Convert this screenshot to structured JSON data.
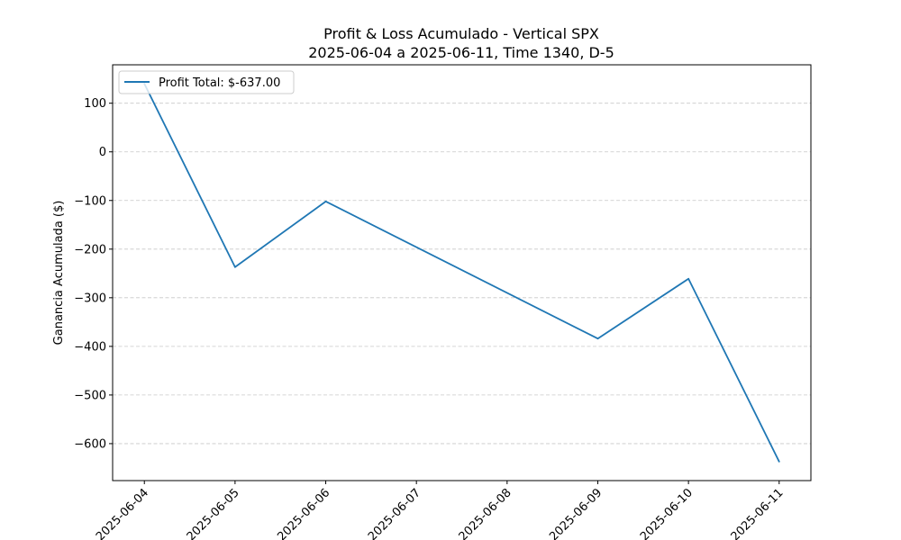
{
  "chart_data": {
    "type": "line",
    "title": "Profit & Loss Acumulado - Vertical SPX",
    "subtitle": "2025-06-04 a 2025-06-11, Time 1340, D-5",
    "xlabel": "",
    "ylabel": "Ganancia Acumulada ($)",
    "x": [
      "2025-06-04",
      "2025-06-05",
      "2025-06-06",
      "2025-06-09",
      "2025-06-10",
      "2025-06-11"
    ],
    "series": [
      {
        "name": "Profit Total: $-637.00",
        "values": [
          140,
          -237,
          -102,
          -384,
          -261,
          -637
        ],
        "color": "#1f77b4"
      }
    ],
    "xticks": [
      "2025-06-04",
      "2025-06-05",
      "2025-06-06",
      "2025-06-07",
      "2025-06-08",
      "2025-06-09",
      "2025-06-10",
      "2025-06-11"
    ],
    "yticks": [
      100,
      0,
      -100,
      -200,
      -300,
      -400,
      -500,
      -600
    ],
    "ylim": [
      -676,
      179
    ],
    "xlim": [
      "2025-06-03.65",
      "2025-06-11.35"
    ],
    "grid": "y-dashed",
    "legend_position": "top-left"
  }
}
